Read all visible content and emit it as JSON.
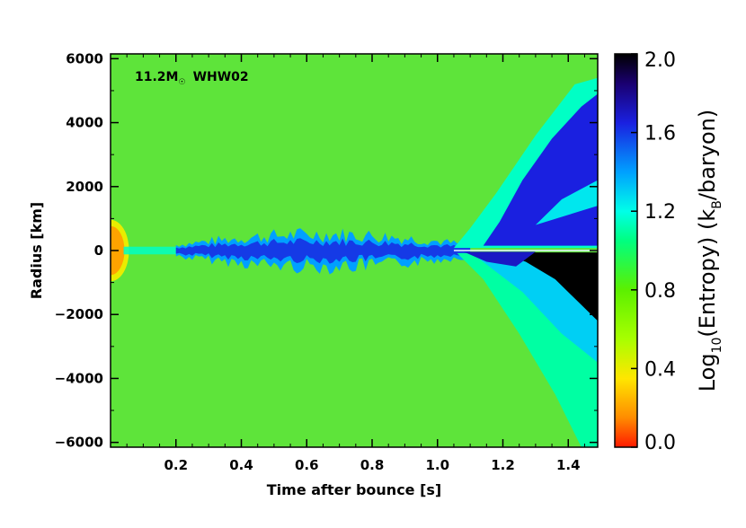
{
  "chart_data": {
    "type": "heatmap",
    "annotation": {
      "mass": "11.2M",
      "sun_symbol": "☉",
      "model": "WHW02"
    },
    "xlabel": "Time after bounce [s]",
    "ylabel": "Radius [km]",
    "colorbar_label_main": "Log",
    "colorbar_label_sub": "10",
    "colorbar_label_mid": "(Entropy)  (k",
    "colorbar_label_sub2": "B",
    "colorbar_label_end": "/baryon)",
    "xlim": [
      0.0,
      1.49
    ],
    "ylim": [
      -6150,
      6150
    ],
    "x_ticks": [
      0.2,
      0.4,
      0.6,
      0.8,
      1.0,
      1.2,
      1.4
    ],
    "x_tick_labels": [
      "0.2",
      "0.4",
      "0.6",
      "0.8",
      "1.0",
      "1.2",
      "1.4"
    ],
    "y_ticks": [
      6000,
      4000,
      2000,
      0,
      -2000,
      -4000,
      -6000
    ],
    "y_tick_labels": [
      "6000",
      "4000",
      "2000",
      "0",
      "−2000",
      "−4000",
      "−6000"
    ],
    "colorbar": {
      "range": [
        0.0,
        2.0
      ],
      "ticks": [
        2.0,
        1.6,
        1.2,
        0.8,
        0.4,
        0.0
      ],
      "tick_labels": [
        "2.0",
        "1.6",
        "1.2",
        "0.8",
        "0.4",
        "0.0"
      ],
      "stops": [
        {
          "v": 0.0,
          "color": "#ff1a00"
        },
        {
          "v": 0.15,
          "color": "#ff8c00"
        },
        {
          "v": 0.35,
          "color": "#ffe600"
        },
        {
          "v": 0.55,
          "color": "#a8ff00"
        },
        {
          "v": 0.8,
          "color": "#5cf000"
        },
        {
          "v": 1.05,
          "color": "#00ff80"
        },
        {
          "v": 1.2,
          "color": "#00ffe8"
        },
        {
          "v": 1.4,
          "color": "#00a0ff"
        },
        {
          "v": 1.65,
          "color": "#1a20e0"
        },
        {
          "v": 1.85,
          "color": "#1a0070"
        },
        {
          "v": 2.0,
          "color": "#000000"
        }
      ]
    },
    "background_value": 0.8,
    "background_color": "#5ee43a",
    "features": {
      "core": {
        "x_extent": [
          0.0,
          0.04
        ],
        "radius_km": 850,
        "value": 0.2
      },
      "equatorial_band": {
        "x_extent": [
          0.2,
          1.1
        ],
        "half_width_km": 500,
        "value": 1.6
      },
      "upper_plume": {
        "x_extent": [
          1.1,
          1.49
        ],
        "top_km": 4900,
        "value": 1.65
      },
      "lower_plume": {
        "x_extent": [
          1.3,
          1.49
        ],
        "bottom_km": -2200,
        "value": 2.0
      },
      "lower_shock": {
        "x_extent": [
          1.1,
          1.49
        ],
        "bottom_km": -6150,
        "value": 1.1
      }
    }
  }
}
